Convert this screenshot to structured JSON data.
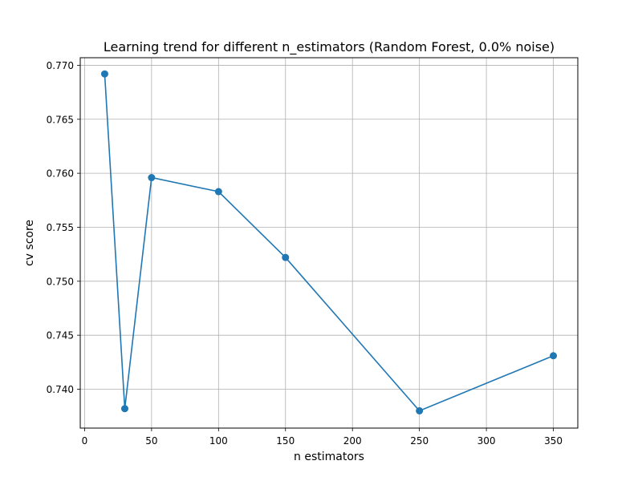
{
  "chart_data": {
    "type": "line",
    "title": "Learning trend for different n_estimators (Random Forest, 0.0% noise)",
    "xlabel": "n estimators",
    "ylabel": "cv score",
    "xlim": [
      -3.25,
      368.25
    ],
    "ylim": [
      0.7364,
      0.7707
    ],
    "xticks": [
      0,
      50,
      100,
      150,
      200,
      250,
      300,
      350
    ],
    "yticks": [
      0.74,
      0.745,
      0.75,
      0.755,
      0.76,
      0.765,
      0.77
    ],
    "ytick_labels": [
      "0.740",
      "0.745",
      "0.750",
      "0.755",
      "0.760",
      "0.765",
      "0.770"
    ],
    "grid": true,
    "color": "#1f77b4",
    "series": [
      {
        "x": [
          15,
          30,
          50,
          100,
          150,
          250,
          350
        ],
        "y": [
          0.7692,
          0.7382,
          0.7596,
          0.7583,
          0.7522,
          0.738,
          0.7431
        ]
      }
    ]
  }
}
